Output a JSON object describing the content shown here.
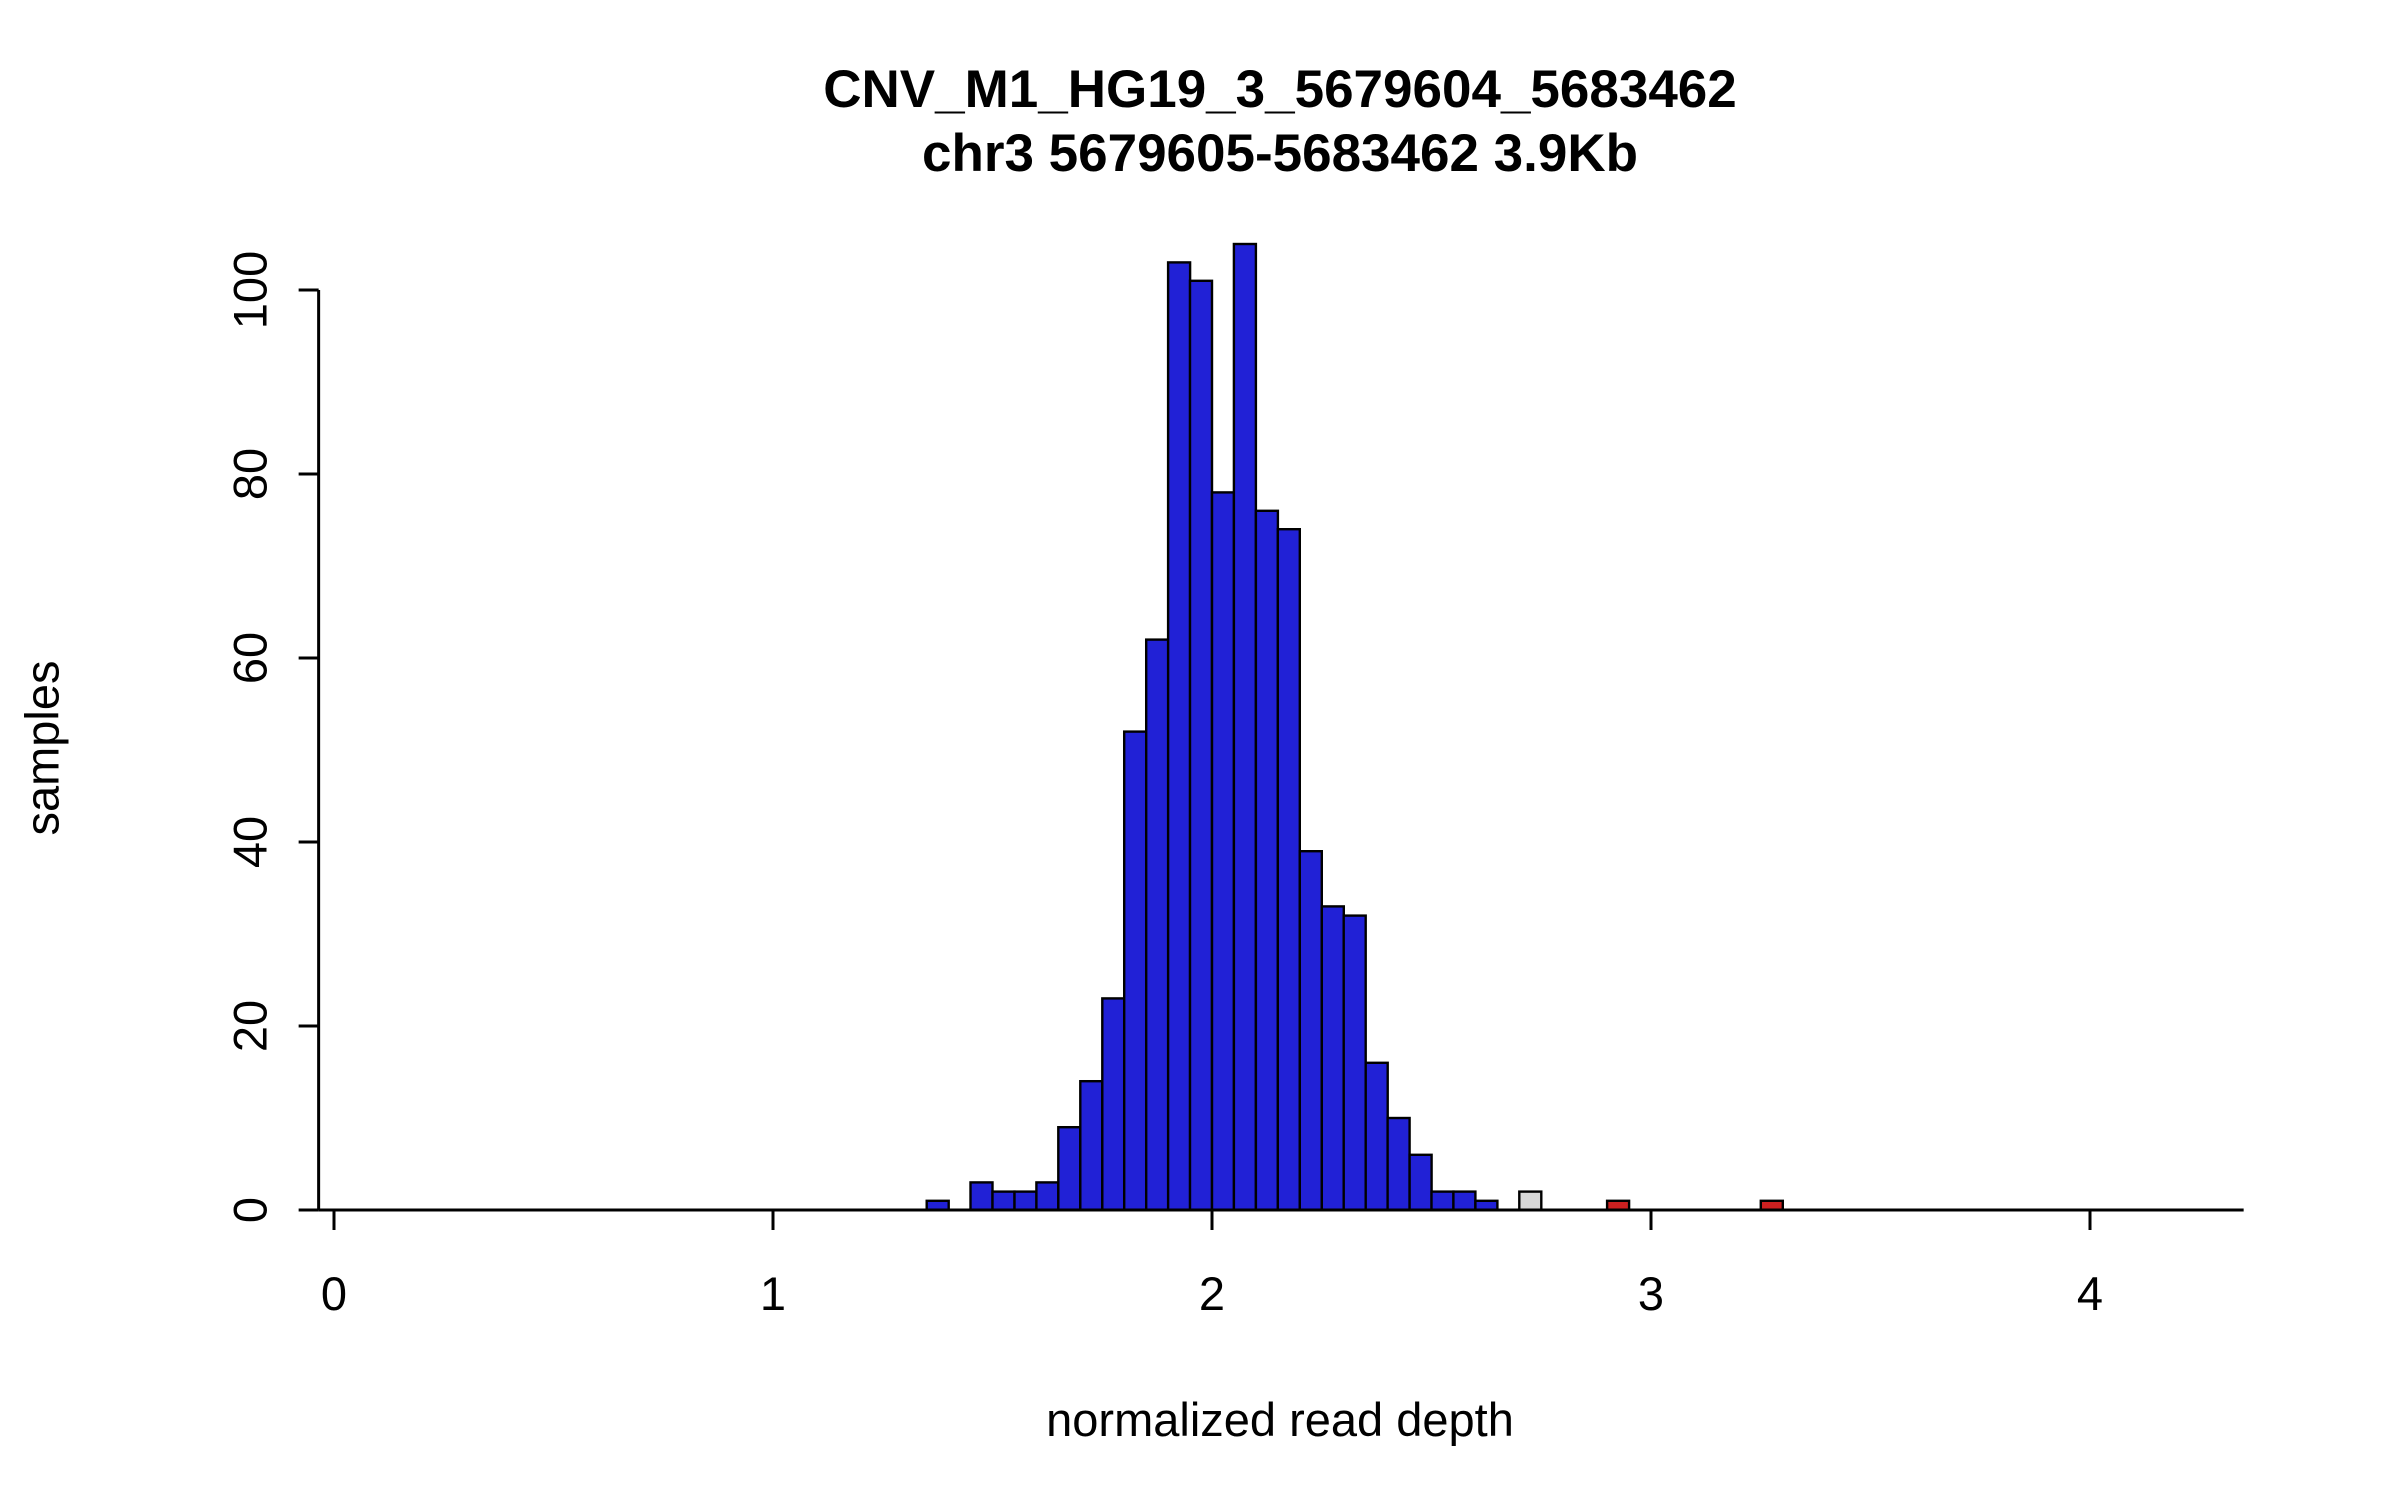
{
  "chart_data": {
    "type": "bar",
    "chart_kind": "histogram",
    "title": "CNV_M1_HG19_3_5679604_5683462",
    "subtitle": "chr3 5679605-5683462 3.9Kb",
    "xlabel": "normalized read depth",
    "ylabel": "samples",
    "xlim": [
      -0.035,
      4.35
    ],
    "ylim": [
      0,
      105
    ],
    "x_ticks": [
      0,
      1,
      2,
      3,
      4
    ],
    "y_ticks": [
      0,
      20,
      40,
      60,
      80,
      100
    ],
    "bin_width": 0.05,
    "grid": false,
    "legend": false,
    "colors": {
      "blue": "#2121D6",
      "gray": "#D8D8D8",
      "red": "#CC2020",
      "border": "#000000",
      "background": "#FFFFFF"
    },
    "bars": [
      {
        "x": 1.35,
        "count": 1,
        "color": "blue"
      },
      {
        "x": 1.45,
        "count": 3,
        "color": "blue"
      },
      {
        "x": 1.5,
        "count": 2,
        "color": "blue"
      },
      {
        "x": 1.55,
        "count": 2,
        "color": "blue"
      },
      {
        "x": 1.6,
        "count": 3,
        "color": "blue"
      },
      {
        "x": 1.65,
        "count": 9,
        "color": "blue"
      },
      {
        "x": 1.7,
        "count": 14,
        "color": "blue"
      },
      {
        "x": 1.75,
        "count": 23,
        "color": "blue"
      },
      {
        "x": 1.8,
        "count": 52,
        "color": "blue"
      },
      {
        "x": 1.85,
        "count": 62,
        "color": "blue"
      },
      {
        "x": 1.9,
        "count": 103,
        "color": "blue"
      },
      {
        "x": 1.95,
        "count": 101,
        "color": "blue"
      },
      {
        "x": 2.0,
        "count": 78,
        "color": "blue"
      },
      {
        "x": 2.05,
        "count": 105,
        "color": "blue"
      },
      {
        "x": 2.1,
        "count": 76,
        "color": "blue"
      },
      {
        "x": 2.15,
        "count": 74,
        "color": "blue"
      },
      {
        "x": 2.2,
        "count": 39,
        "color": "blue"
      },
      {
        "x": 2.25,
        "count": 33,
        "color": "blue"
      },
      {
        "x": 2.3,
        "count": 32,
        "color": "blue"
      },
      {
        "x": 2.35,
        "count": 16,
        "color": "blue"
      },
      {
        "x": 2.4,
        "count": 10,
        "color": "blue"
      },
      {
        "x": 2.45,
        "count": 6,
        "color": "blue"
      },
      {
        "x": 2.5,
        "count": 2,
        "color": "blue"
      },
      {
        "x": 2.55,
        "count": 2,
        "color": "blue"
      },
      {
        "x": 2.6,
        "count": 1,
        "color": "blue"
      },
      {
        "x": 2.7,
        "count": 2,
        "color": "gray"
      },
      {
        "x": 2.9,
        "count": 1,
        "color": "red"
      },
      {
        "x": 3.25,
        "count": 1,
        "color": "red"
      }
    ]
  }
}
